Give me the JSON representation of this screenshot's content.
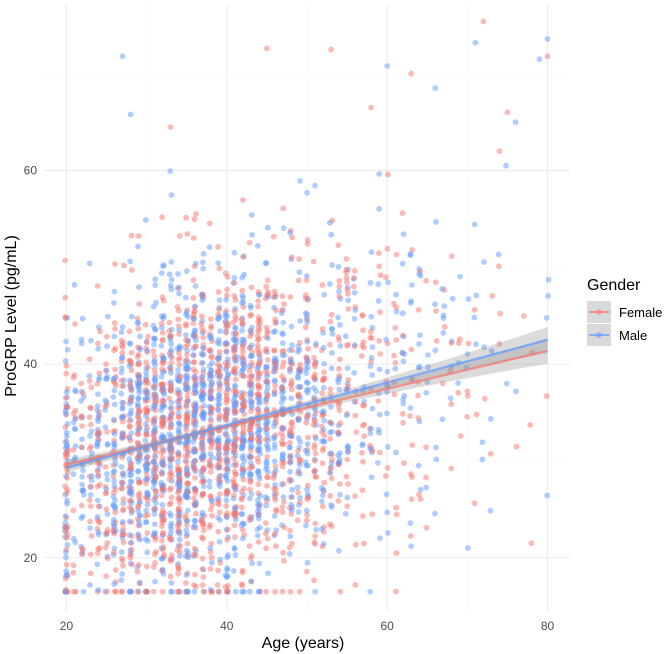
{
  "chart_data": {
    "type": "scatter",
    "title": "",
    "xlabel": "Age (years)",
    "ylabel": "ProGRP Level (pg/mL)",
    "xlim": [
      17.2,
      82.8
    ],
    "ylim": [
      14.4,
      77.2
    ],
    "x_ticks": [
      20,
      40,
      60,
      80
    ],
    "y_ticks": [
      20,
      40,
      60
    ],
    "grid": true,
    "legend": {
      "title": "Gender",
      "position": "right",
      "entries": [
        "Female",
        "Male"
      ]
    },
    "series": [
      {
        "name": "Female",
        "color": "#F8766D",
        "point_count": 1500,
        "trend": {
          "intercept": 25.7,
          "slope": 0.196
        },
        "annotated_points": [
          [
            63,
            70
          ],
          [
            72,
            75.4
          ],
          [
            53,
            72.5
          ],
          [
            80,
            71.8
          ],
          [
            45,
            72.6
          ],
          [
            33,
            64.5
          ],
          [
            58,
            66.5
          ],
          [
            75,
            66
          ],
          [
            74,
            62
          ]
        ]
      },
      {
        "name": "Male",
        "color": "#619CFF",
        "point_count": 1500,
        "trend": {
          "intercept": 24.9,
          "slope": 0.22
        },
        "annotated_points": [
          [
            27,
            71.8
          ],
          [
            71,
            73.2
          ],
          [
            60,
            70.8
          ],
          [
            80,
            73.6
          ],
          [
            66,
            68.5
          ],
          [
            28,
            65.8
          ],
          [
            76,
            65
          ],
          [
            79,
            71.5
          ],
          [
            21,
            48.2
          ],
          [
            20,
            32
          ]
        ]
      }
    ],
    "confidence_band_color": "#999999"
  },
  "colors": {
    "panel_background": "#ffffff",
    "grid": "#ebebeb"
  }
}
